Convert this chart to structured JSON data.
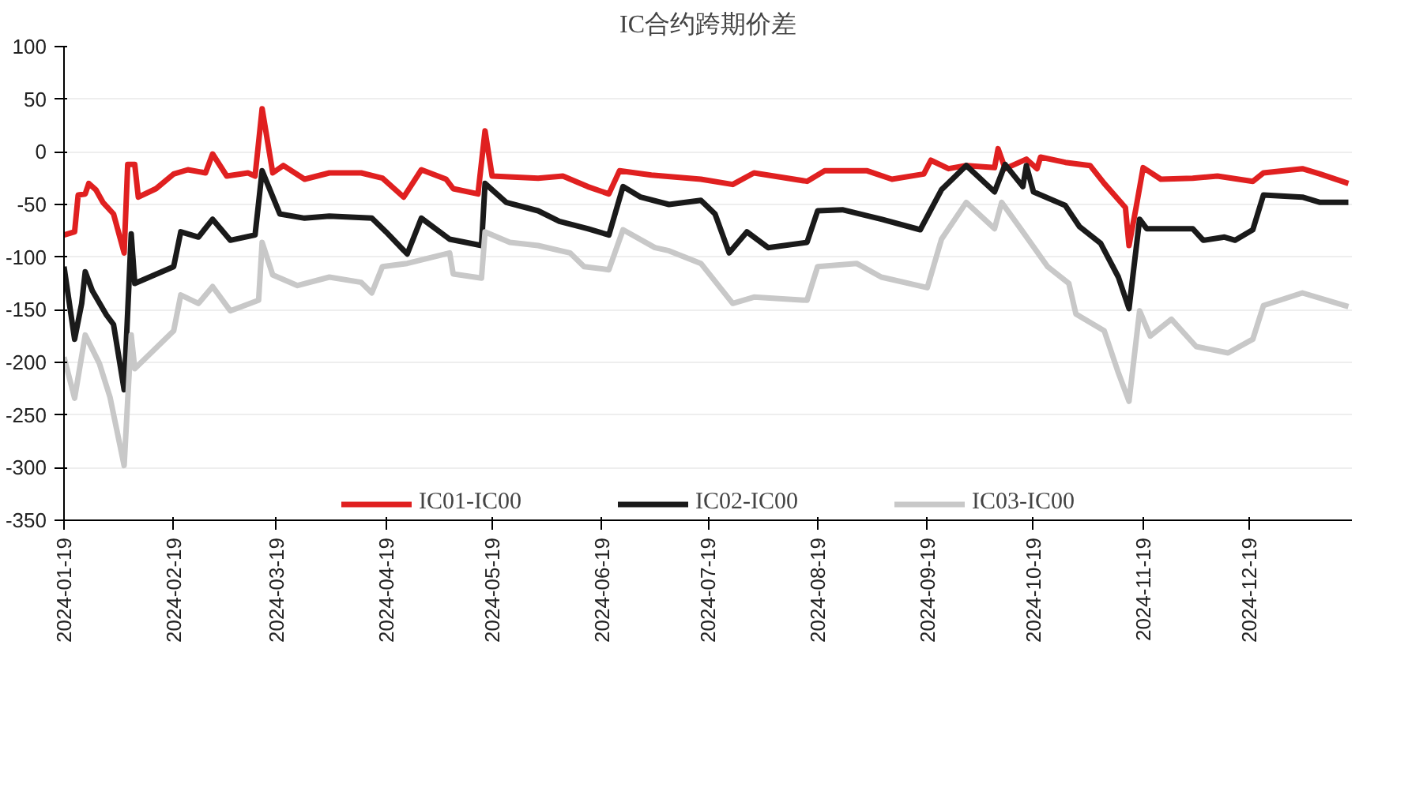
{
  "chart_data": {
    "type": "line",
    "title": "IC合约跨期价差",
    "xlim": [
      "2024-01-19",
      "2025-01-17"
    ],
    "xticks": [
      "2024-01-19",
      "2024-02-19",
      "2024-03-19",
      "2024-04-19",
      "2024-05-19",
      "2024-06-19",
      "2024-07-19",
      "2024-08-19",
      "2024-09-19",
      "2024-10-19",
      "2024-11-19",
      "2024-12-19"
    ],
    "ylim": [
      -350,
      100
    ],
    "yticks": [
      -350,
      -300,
      -250,
      -200,
      -150,
      -100,
      -50,
      0,
      50,
      100
    ],
    "grid": "y",
    "legend": "bottom",
    "marker": "none",
    "line_style": "solid",
    "series": [
      {
        "name": "IC01-IC00",
        "color": "#e02020",
        "x": [
          "2024-01-19",
          "2024-01-22",
          "2024-01-23",
          "2024-01-25",
          "2024-01-26",
          "2024-01-28",
          "2024-01-30",
          "2024-02-02",
          "2024-02-05",
          "2024-02-06",
          "2024-02-08",
          "2024-02-09",
          "2024-02-14",
          "2024-02-19",
          "2024-02-23",
          "2024-02-28",
          "2024-03-01",
          "2024-03-05",
          "2024-03-11",
          "2024-03-13",
          "2024-03-15",
          "2024-03-18",
          "2024-03-21",
          "2024-03-27",
          "2024-04-03",
          "2024-04-12",
          "2024-04-18",
          "2024-04-24",
          "2024-04-29",
          "2024-05-06",
          "2024-05-08",
          "2024-05-15",
          "2024-05-17",
          "2024-05-19",
          "2024-06-01",
          "2024-06-08",
          "2024-06-15",
          "2024-06-21",
          "2024-06-24",
          "2024-07-03",
          "2024-07-17",
          "2024-07-26",
          "2024-08-01",
          "2024-08-16",
          "2024-08-21",
          "2024-09-02",
          "2024-09-09",
          "2024-09-18",
          "2024-09-20",
          "2024-09-25",
          "2024-09-30",
          "2024-10-08",
          "2024-10-09",
          "2024-10-11",
          "2024-10-17",
          "2024-10-20",
          "2024-10-21",
          "2024-10-28",
          "2024-11-04",
          "2024-11-08",
          "2024-11-14",
          "2024-11-15",
          "2024-11-17",
          "2024-11-19",
          "2024-11-24",
          "2024-12-03",
          "2024-12-10",
          "2024-12-20",
          "2024-12-23",
          "2025-01-03",
          "2025-01-08",
          "2025-01-16"
        ],
        "values": [
          -79,
          -76,
          -41,
          -40,
          -30,
          -36,
          -48,
          -59,
          -96,
          -12,
          -12,
          -43,
          -35,
          -21,
          -17,
          -20,
          -2,
          -23,
          -20,
          -23,
          41,
          -20,
          -13,
          -26,
          -20,
          -20,
          -25,
          -43,
          -17,
          -26,
          -35,
          -40,
          20,
          -23,
          -25,
          -23,
          -33,
          -40,
          -18,
          -22,
          -26,
          -31,
          -20,
          -28,
          -18,
          -18,
          -26,
          -21,
          -8,
          -16,
          -13,
          -15,
          3,
          -16,
          -7,
          -16,
          -5,
          -10,
          -13,
          -30,
          -53,
          -89,
          -53,
          -15,
          -26,
          -25,
          -23,
          -28,
          -20,
          -16,
          -21,
          -30
        ]
      },
      {
        "name": "IC02-IC00",
        "color": "#1a1a1a",
        "x": [
          "2024-01-19",
          "2024-01-22",
          "2024-01-24",
          "2024-01-25",
          "2024-01-27",
          "2024-01-31",
          "2024-02-02",
          "2024-02-05",
          "2024-02-07",
          "2024-02-08",
          "2024-02-19",
          "2024-02-21",
          "2024-02-26",
          "2024-03-01",
          "2024-03-06",
          "2024-03-13",
          "2024-03-15",
          "2024-03-20",
          "2024-03-27",
          "2024-04-03",
          "2024-04-15",
          "2024-04-19",
          "2024-04-25",
          "2024-04-29",
          "2024-05-07",
          "2024-05-16",
          "2024-05-17",
          "2024-05-23",
          "2024-06-01",
          "2024-06-07",
          "2024-06-15",
          "2024-06-21",
          "2024-06-25",
          "2024-06-30",
          "2024-07-08",
          "2024-07-17",
          "2024-07-21",
          "2024-07-25",
          "2024-07-30",
          "2024-08-05",
          "2024-08-16",
          "2024-08-19",
          "2024-08-26",
          "2024-09-06",
          "2024-09-17",
          "2024-09-23",
          "2024-09-30",
          "2024-10-08",
          "2024-10-11",
          "2024-10-16",
          "2024-10-17",
          "2024-10-19",
          "2024-10-28",
          "2024-11-01",
          "2024-11-07",
          "2024-11-12",
          "2024-11-15",
          "2024-11-18",
          "2024-11-20",
          "2024-12-03",
          "2024-12-06",
          "2024-12-12",
          "2024-12-15",
          "2024-12-20",
          "2024-12-23",
          "2025-01-03",
          "2025-01-08",
          "2025-01-16"
        ],
        "values": [
          -109,
          -178,
          -144,
          -114,
          -132,
          -155,
          -164,
          -226,
          -78,
          -125,
          -109,
          -76,
          -81,
          -64,
          -84,
          -79,
          -18,
          -59,
          -63,
          -61,
          -63,
          -76,
          -97,
          -63,
          -83,
          -89,
          -30,
          -48,
          -56,
          -66,
          -73,
          -79,
          -33,
          -43,
          -50,
          -46,
          -59,
          -96,
          -76,
          -91,
          -86,
          -56,
          -55,
          -64,
          -74,
          -36,
          -13,
          -38,
          -12,
          -33,
          -13,
          -38,
          -51,
          -71,
          -87,
          -119,
          -149,
          -64,
          -73,
          -73,
          -84,
          -81,
          -84,
          -74,
          -41,
          -43,
          -48,
          -48
        ]
      },
      {
        "name": "IC03-IC00",
        "color": "#c8c8c8",
        "x": [
          "2024-01-19",
          "2024-01-22",
          "2024-01-25",
          "2024-01-29",
          "2024-02-01",
          "2024-02-05",
          "2024-02-07",
          "2024-02-08",
          "2024-02-19",
          "2024-02-21",
          "2024-02-26",
          "2024-03-01",
          "2024-03-06",
          "2024-03-14",
          "2024-03-15",
          "2024-03-18",
          "2024-03-25",
          "2024-04-03",
          "2024-04-12",
          "2024-04-15",
          "2024-04-18",
          "2024-04-25",
          "2024-05-07",
          "2024-05-08",
          "2024-05-16",
          "2024-05-17",
          "2024-05-24",
          "2024-06-01",
          "2024-06-10",
          "2024-06-14",
          "2024-06-21",
          "2024-06-25",
          "2024-07-04",
          "2024-07-08",
          "2024-07-17",
          "2024-07-26",
          "2024-08-01",
          "2024-08-16",
          "2024-08-19",
          "2024-08-30",
          "2024-09-06",
          "2024-09-19",
          "2024-09-23",
          "2024-09-30",
          "2024-10-08",
          "2024-10-10",
          "2024-10-16",
          "2024-10-23",
          "2024-10-29",
          "2024-10-31",
          "2024-11-08",
          "2024-11-12",
          "2024-11-15",
          "2024-11-18",
          "2024-11-21",
          "2024-11-27",
          "2024-12-04",
          "2024-12-13",
          "2024-12-20",
          "2024-12-23",
          "2025-01-03",
          "2025-01-16"
        ],
        "values": [
          -195,
          -234,
          -174,
          -201,
          -233,
          -298,
          -174,
          -206,
          -170,
          -136,
          -144,
          -128,
          -151,
          -141,
          -86,
          -117,
          -127,
          -119,
          -124,
          -134,
          -109,
          -106,
          -96,
          -116,
          -120,
          -76,
          -86,
          -89,
          -96,
          -109,
          -112,
          -74,
          -91,
          -94,
          -106,
          -144,
          -138,
          -141,
          -109,
          -106,
          -119,
          -129,
          -83,
          -48,
          -73,
          -48,
          -76,
          -109,
          -125,
          -154,
          -170,
          -210,
          -237,
          -151,
          -175,
          -159,
          -185,
          -191,
          -178,
          -146,
          -134,
          -147
        ]
      }
    ]
  }
}
